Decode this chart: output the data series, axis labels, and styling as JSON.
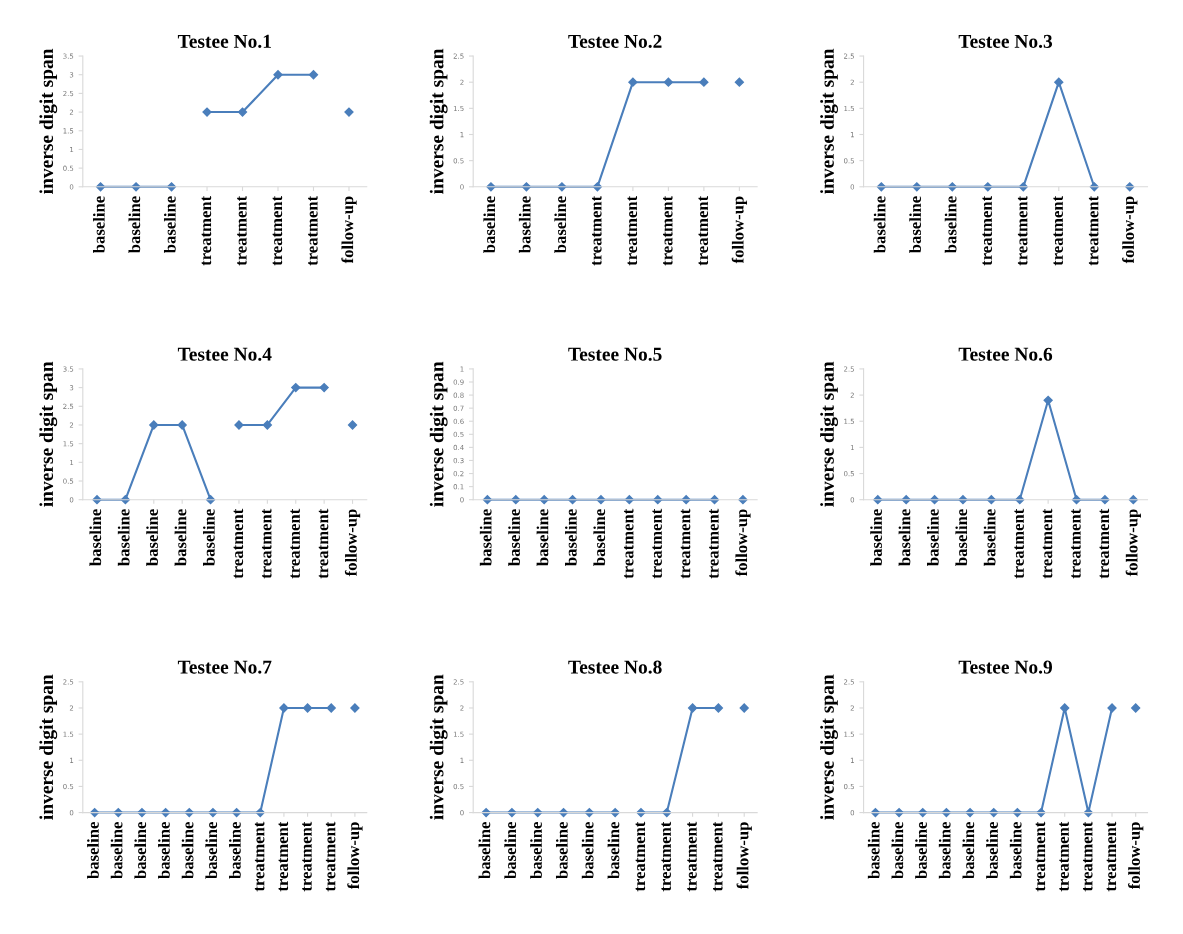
{
  "chart_data": [
    {
      "type": "line",
      "title": "Testee No.1",
      "ylabel": "inverse digit span",
      "marker": "diamond",
      "ylim": [
        0,
        3.5
      ],
      "yticks": [
        0,
        0.5,
        1,
        1.5,
        2,
        2.5,
        3,
        3.5
      ],
      "categories": [
        "baseline",
        "baseline",
        "baseline",
        "treatment",
        "treatment",
        "treatment",
        "treatment",
        "follow-up"
      ],
      "series": [
        {
          "color": "#4a7ebb",
          "values": [
            0,
            0,
            0,
            null,
            null,
            null,
            null,
            null
          ]
        },
        {
          "color": "#4a7ebb",
          "values": [
            null,
            null,
            null,
            2,
            2,
            3,
            3,
            null
          ]
        },
        {
          "color": "#4a7ebb",
          "values": [
            null,
            null,
            null,
            null,
            null,
            null,
            null,
            2
          ]
        }
      ]
    },
    {
      "type": "line",
      "title": "Testee No.2",
      "ylabel": "inverse digit span",
      "marker": "diamond",
      "ylim": [
        0,
        2.5
      ],
      "yticks": [
        0,
        0.5,
        1,
        1.5,
        2,
        2.5
      ],
      "categories": [
        "baseline",
        "baseline",
        "baseline",
        "treatment",
        "treatment",
        "treatment",
        "treatment",
        "follow-up"
      ],
      "series": [
        {
          "color": "#4a7ebb",
          "values": [
            0,
            0,
            0,
            0,
            2,
            2,
            2,
            null
          ]
        },
        {
          "color": "#4a7ebb",
          "values": [
            null,
            null,
            null,
            null,
            null,
            null,
            null,
            2
          ]
        }
      ]
    },
    {
      "type": "line",
      "title": "Testee No.3",
      "ylabel": "inverse digit span",
      "marker": "diamond",
      "ylim": [
        0,
        2.5
      ],
      "yticks": [
        0,
        0.5,
        1,
        1.5,
        2,
        2.5
      ],
      "categories": [
        "baseline",
        "baseline",
        "baseline",
        "treatment",
        "treatment",
        "treatment",
        "treatment",
        "follow-up"
      ],
      "series": [
        {
          "color": "#4a7ebb",
          "values": [
            0,
            0,
            0,
            0,
            0,
            2,
            0,
            null
          ]
        },
        {
          "color": "#4a7ebb",
          "values": [
            null,
            null,
            null,
            null,
            null,
            null,
            null,
            0
          ]
        }
      ]
    },
    {
      "type": "line",
      "title": "Testee No.4",
      "ylabel": "inverse digit span",
      "marker": "diamond",
      "ylim": [
        0,
        3.5
      ],
      "yticks": [
        0,
        0.5,
        1,
        1.5,
        2,
        2.5,
        3,
        3.5
      ],
      "categories": [
        "baseline",
        "baseline",
        "baseline",
        "baseline",
        "baseline",
        "treatment",
        "treatment",
        "treatment",
        "treatment",
        "follow-up"
      ],
      "series": [
        {
          "color": "#4a7ebb",
          "values": [
            0,
            0,
            2,
            2,
            0,
            null,
            null,
            null,
            null,
            null
          ]
        },
        {
          "color": "#4a7ebb",
          "values": [
            null,
            null,
            null,
            null,
            null,
            2,
            2,
            3,
            3,
            null
          ]
        },
        {
          "color": "#4a7ebb",
          "values": [
            null,
            null,
            null,
            null,
            null,
            null,
            null,
            null,
            null,
            2
          ]
        }
      ]
    },
    {
      "type": "line",
      "title": "Testee No.5",
      "ylabel": "inverse digit span",
      "marker": "diamond",
      "ylim": [
        0,
        1
      ],
      "yticks": [
        0,
        0.1,
        0.2,
        0.3,
        0.4,
        0.5,
        0.6,
        0.7,
        0.8,
        0.9,
        1
      ],
      "categories": [
        "baseline",
        "baseline",
        "baseline",
        "baseline",
        "baseline",
        "treatment",
        "treatment",
        "treatment",
        "treatment",
        "follow-up"
      ],
      "series": [
        {
          "color": "#4a7ebb",
          "values": [
            0,
            0,
            0,
            0,
            0,
            0,
            0,
            0,
            0,
            null
          ]
        },
        {
          "color": "#4a7ebb",
          "values": [
            null,
            null,
            null,
            null,
            null,
            null,
            null,
            null,
            null,
            0
          ]
        }
      ]
    },
    {
      "type": "line",
      "title": "Testee No.6",
      "ylabel": "inverse digit span",
      "marker": "diamond",
      "ylim": [
        0,
        2.5
      ],
      "yticks": [
        0,
        0.5,
        1,
        1.5,
        2,
        2.5
      ],
      "categories": [
        "baseline",
        "baseline",
        "baseline",
        "baseline",
        "baseline",
        "treatment",
        "treatment",
        "treatment",
        "treatment",
        "follow-up"
      ],
      "series": [
        {
          "color": "#4a7ebb",
          "values": [
            0,
            0,
            0,
            0,
            0,
            0,
            1.9,
            0,
            0,
            null
          ]
        },
        {
          "color": "#4a7ebb",
          "values": [
            null,
            null,
            null,
            null,
            null,
            null,
            null,
            null,
            null,
            0
          ]
        }
      ]
    },
    {
      "type": "line",
      "title": "Testee No.7",
      "ylabel": "inverse digit span",
      "marker": "diamond",
      "ylim": [
        0,
        2.5
      ],
      "yticks": [
        0,
        0.5,
        1,
        1.5,
        2,
        2.5
      ],
      "categories": [
        "baseline",
        "baseline",
        "baseline",
        "baseline",
        "baseline",
        "baseline",
        "baseline",
        "treatment",
        "treatment",
        "treatment",
        "treatment",
        "follow-up"
      ],
      "series": [
        {
          "color": "#4a7ebb",
          "values": [
            0,
            0,
            0,
            0,
            0,
            0,
            0,
            0,
            2,
            2,
            2,
            null
          ]
        },
        {
          "color": "#4a7ebb",
          "values": [
            null,
            null,
            null,
            null,
            null,
            null,
            null,
            null,
            null,
            null,
            null,
            2
          ]
        }
      ]
    },
    {
      "type": "line",
      "title": "Testee No.8",
      "ylabel": "inverse digit span",
      "marker": "diamond",
      "ylim": [
        0,
        2.5
      ],
      "yticks": [
        0,
        0.5,
        1,
        1.5,
        2,
        2.5
      ],
      "categories": [
        "baseline",
        "baseline",
        "baseline",
        "baseline",
        "baseline",
        "baseline",
        "treatment",
        "treatment",
        "treatment",
        "treatment",
        "follow-up"
      ],
      "series": [
        {
          "color": "#4a7ebb",
          "values": [
            0,
            0,
            0,
            0,
            0,
            0,
            null,
            null,
            null,
            null,
            null
          ]
        },
        {
          "color": "#4a7ebb",
          "values": [
            null,
            null,
            null,
            null,
            null,
            null,
            0,
            0,
            2,
            2,
            null
          ]
        },
        {
          "color": "#4a7ebb",
          "values": [
            null,
            null,
            null,
            null,
            null,
            null,
            null,
            null,
            null,
            null,
            2
          ]
        }
      ]
    },
    {
      "type": "line",
      "title": "Testee No.9",
      "ylabel": "inverse digit span",
      "marker": "diamond",
      "ylim": [
        0,
        2.5
      ],
      "yticks": [
        0,
        0.5,
        1,
        1.5,
        2,
        2.5
      ],
      "categories": [
        "baseline",
        "baseline",
        "baseline",
        "baseline",
        "baseline",
        "baseline",
        "baseline",
        "treatment",
        "treatment",
        "treatment",
        "treatment",
        "follow-up"
      ],
      "series": [
        {
          "color": "#4a7ebb",
          "values": [
            0,
            0,
            0,
            0,
            0,
            0,
            0,
            0,
            2,
            0,
            2,
            null
          ]
        },
        {
          "color": "#4a7ebb",
          "values": [
            null,
            null,
            null,
            null,
            null,
            null,
            null,
            null,
            null,
            null,
            null,
            2
          ]
        }
      ]
    }
  ]
}
